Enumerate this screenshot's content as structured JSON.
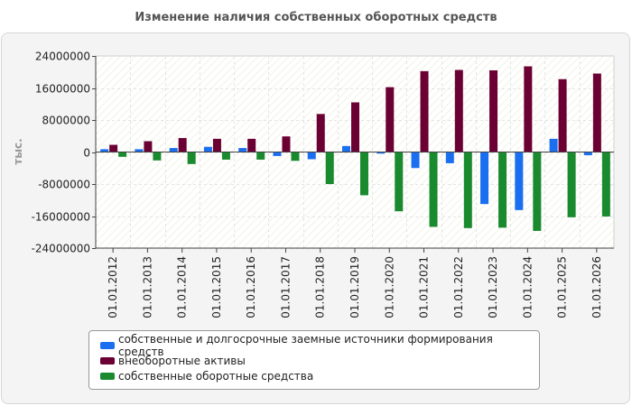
{
  "chart_data": {
    "type": "bar",
    "title": "Изменение наличия собственных оборотных средств",
    "ylabel": "тыс.",
    "xlabel": "",
    "ylim": [
      -24000000,
      24000000
    ],
    "yticks": [
      24000000,
      16000000,
      8000000,
      0,
      -8000000,
      -16000000,
      -24000000
    ],
    "ytick_labels": [
      "24000000",
      "16000000",
      "8000000",
      "0",
      "-8000000",
      "-16000000",
      "-24000000"
    ],
    "grid": true,
    "legend_position": "bottom",
    "categories": [
      "01.01.2012",
      "01.01.2013",
      "01.01.2014",
      "01.01.2015",
      "01.01.2016",
      "01.01.2017",
      "01.01.2018",
      "01.01.2019",
      "01.01.2020",
      "01.01.2021",
      "01.01.2022",
      "01.01.2023",
      "01.01.2024",
      "01.01.2025",
      "01.01.2026"
    ],
    "series": [
      {
        "name": "собственные и долгосрочные заемные источники формирования средств",
        "color": "#1a6ff0",
        "values": [
          700000,
          700000,
          1000000,
          1300000,
          1000000,
          -1000000,
          -1800000,
          1500000,
          -400000,
          -4000000,
          -2800000,
          -13000000,
          -14500000,
          3300000,
          -800000
        ]
      },
      {
        "name": "внеоборотные активы",
        "color": "#6b0032",
        "values": [
          1800000,
          2700000,
          3500000,
          3300000,
          3300000,
          3900000,
          9500000,
          12400000,
          16200000,
          20200000,
          20500000,
          20400000,
          21400000,
          18200000,
          19600000
        ]
      },
      {
        "name": "собственные оборотные средства",
        "color": "#1a8a2e",
        "values": [
          -1200000,
          -2100000,
          -3000000,
          -1900000,
          -1900000,
          -2200000,
          -8000000,
          -10800000,
          -14800000,
          -18700000,
          -19000000,
          -18900000,
          -19700000,
          -16300000,
          -16100000
        ]
      }
    ]
  }
}
